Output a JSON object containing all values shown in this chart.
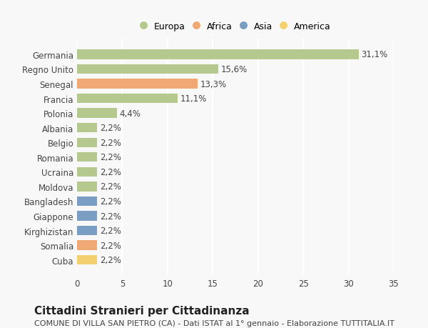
{
  "countries": [
    "Germania",
    "Regno Unito",
    "Senegal",
    "Francia",
    "Polonia",
    "Albania",
    "Belgio",
    "Romania",
    "Ucraina",
    "Moldova",
    "Bangladesh",
    "Giappone",
    "Kirghizistan",
    "Somalia",
    "Cuba"
  ],
  "values": [
    31.1,
    15.6,
    13.3,
    11.1,
    4.4,
    2.2,
    2.2,
    2.2,
    2.2,
    2.2,
    2.2,
    2.2,
    2.2,
    2.2,
    2.2
  ],
  "labels": [
    "31,1%",
    "15,6%",
    "13,3%",
    "11,1%",
    "4,4%",
    "2,2%",
    "2,2%",
    "2,2%",
    "2,2%",
    "2,2%",
    "2,2%",
    "2,2%",
    "2,2%",
    "2,2%",
    "2,2%"
  ],
  "colors": [
    "#b5c98e",
    "#b5c98e",
    "#f0a875",
    "#b5c98e",
    "#b5c98e",
    "#b5c98e",
    "#b5c98e",
    "#b5c98e",
    "#b5c98e",
    "#b5c98e",
    "#7a9dc4",
    "#7a9dc4",
    "#7a9dc4",
    "#f0a875",
    "#f5d06e"
  ],
  "legend_labels": [
    "Europa",
    "Africa",
    "Asia",
    "America"
  ],
  "legend_colors": [
    "#b5c98e",
    "#f0a875",
    "#7a9dc4",
    "#f5d06e"
  ],
  "xlim": [
    0,
    35
  ],
  "xticks": [
    0,
    5,
    10,
    15,
    20,
    25,
    30,
    35
  ],
  "title": "Cittadini Stranieri per Cittadinanza",
  "subtitle": "COMUNE DI VILLA SAN PIETRO (CA) - Dati ISTAT al 1° gennaio - Elaborazione TUTTITALIA.IT",
  "bg_color": "#f8f8f8",
  "grid_color": "#ffffff",
  "bar_label_fontsize": 8.5,
  "tick_fontsize": 8.5,
  "title_fontsize": 11,
  "subtitle_fontsize": 8
}
